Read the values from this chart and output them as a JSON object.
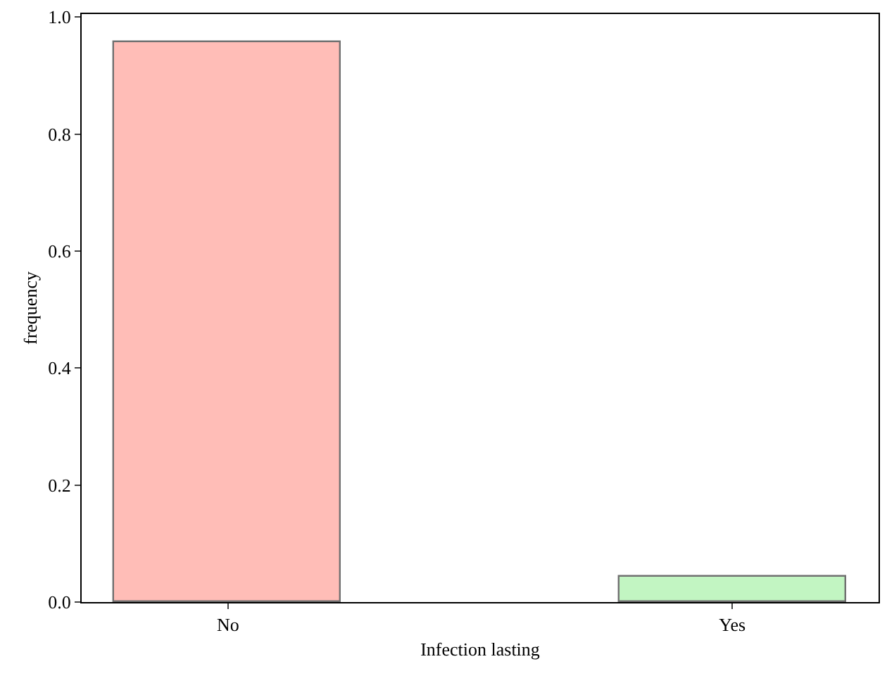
{
  "chart_data": {
    "type": "bar",
    "xlabel": "Infection lasting",
    "ylabel": "frequency",
    "categories": [
      "No",
      "Yes"
    ],
    "values": [
      0.957,
      0.043
    ],
    "colors": [
      "#ffbdb7",
      "#c2f5c2"
    ],
    "ylim": [
      0,
      1.005
    ],
    "yticks": [
      {
        "value": 0,
        "label": "0.0"
      },
      {
        "value": 0.2,
        "label": "0.2"
      },
      {
        "value": 0.4,
        "label": "0.4"
      },
      {
        "value": 0.6,
        "label": "0.6"
      },
      {
        "value": 0.8,
        "label": "0.8"
      },
      {
        "value": 1,
        "label": "1.0"
      }
    ]
  }
}
